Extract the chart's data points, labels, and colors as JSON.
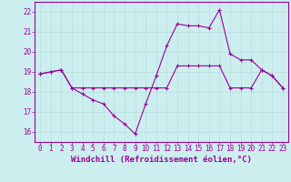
{
  "xlabel": "Windchill (Refroidissement éolien,°C)",
  "x": [
    0,
    1,
    2,
    3,
    4,
    5,
    6,
    7,
    8,
    9,
    10,
    11,
    12,
    13,
    14,
    15,
    16,
    17,
    18,
    19,
    20,
    21,
    22,
    23
  ],
  "line1": [
    18.9,
    19.0,
    19.1,
    18.2,
    17.9,
    17.6,
    17.4,
    16.8,
    16.4,
    15.9,
    17.4,
    18.8,
    20.3,
    21.4,
    21.3,
    21.3,
    21.2,
    22.1,
    19.9,
    19.6,
    19.6,
    19.1,
    18.8,
    18.2
  ],
  "line2": [
    18.9,
    19.0,
    19.1,
    18.2,
    18.2,
    18.2,
    18.2,
    18.2,
    18.2,
    18.2,
    18.2,
    18.2,
    18.2,
    19.3,
    19.3,
    19.3,
    19.3,
    19.3,
    18.2,
    18.2,
    18.2,
    19.1,
    18.8,
    18.2
  ],
  "line_color": "#990099",
  "bg_color": "#cceeee",
  "grid_color": "#b8dede",
  "ylim": [
    15.5,
    22.5
  ],
  "yticks": [
    16,
    17,
    18,
    19,
    20,
    21,
    22
  ],
  "xticks": [
    0,
    1,
    2,
    3,
    4,
    5,
    6,
    7,
    8,
    9,
    10,
    11,
    12,
    13,
    14,
    15,
    16,
    17,
    18,
    19,
    20,
    21,
    22,
    23
  ],
  "xlabel_fontsize": 6.5,
  "tick_fontsize": 5.5
}
